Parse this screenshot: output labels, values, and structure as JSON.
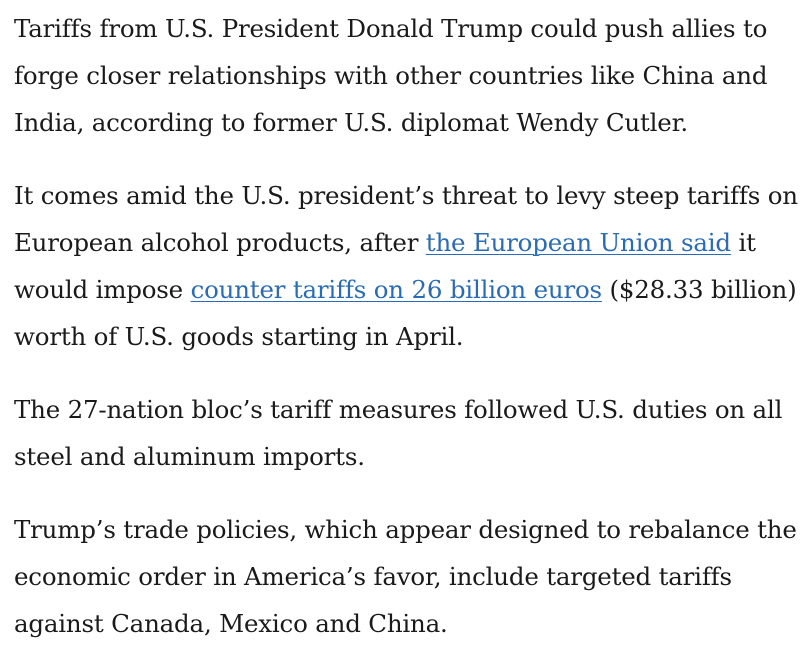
{
  "article": {
    "p1": {
      "text": "Tariffs from U.S. President Donald Trump could push allies to forge closer relationships with other countries like China and India, according to former U.S. diplomat Wendy Cutler."
    },
    "p2": {
      "t1": "It comes amid the U.S. president’s threat to levy steep tariffs on European alcohol products, after ",
      "link1": "the European Union said",
      "t2": " it would impose ",
      "link2": "counter tariffs on 26 billion euros",
      "t3": " ($28.33 billion) worth of U.S. goods starting in April."
    },
    "p3": {
      "text": "The 27-nation bloc’s tariff measures followed U.S. duties on all steel and aluminum imports."
    },
    "p4": {
      "text": "Trump’s trade policies, which appear designed to rebalance the economic order in America’s favor, include targeted tariffs against Canada, Mexico and China."
    },
    "colors": {
      "text": "#1a1a1a",
      "link": "#2a6bb5"
    }
  }
}
